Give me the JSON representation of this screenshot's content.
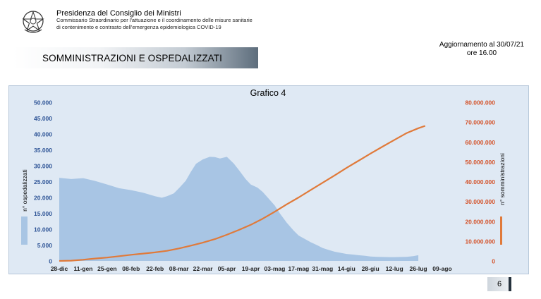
{
  "header": {
    "title": "Presidenza del Consiglio dei Ministri",
    "subtitle_line1": "Commissario Straordinario  per l'attuazione e il coordinamento delle misure sanitarie",
    "subtitle_line2": "di contenimento e contrasto dell'emergenza epidemiologica COVID-19"
  },
  "update": {
    "line1": "Aggiornamento al 30/07/21",
    "line2": "ore 16.00"
  },
  "banner": {
    "title": "SOMMINISTRAZIONI E OSPEDALIZZATI"
  },
  "page_number": "6",
  "colors": {
    "area": "#a8c5e4",
    "line": "#e07a3a",
    "left_axis_text": "#2f5597",
    "right_axis_text": "#d4532a",
    "chart_bg": "#dfe9f4"
  },
  "chart_data": {
    "type": "area",
    "title": "Grafico 4",
    "categories": [
      "28-dic",
      "11-gen",
      "25-gen",
      "08-feb",
      "22-feb",
      "08-mar",
      "22-mar",
      "05-apr",
      "19-apr",
      "03-mag",
      "17-mag",
      "31-mag",
      "14-giu",
      "28-giu",
      "12-lug",
      "26-lug",
      "09-ago"
    ],
    "x": [
      0,
      14,
      28,
      42,
      56,
      70,
      84,
      98,
      112,
      126,
      140,
      154,
      168,
      182,
      196,
      210,
      224
    ],
    "ylabel_left": "n° ospedalizzati",
    "ylabel_right": "n° somministrazioni",
    "yticks_left": [
      "0",
      "5.000",
      "10.000",
      "15.000",
      "20.000",
      "25.000",
      "30.000",
      "35.000",
      "40.000",
      "45.000",
      "50.000"
    ],
    "yticks_right": [
      "0",
      "10.000.000",
      "20.000.000",
      "30.000.000",
      "40.000.000",
      "50.000.000",
      "60.000.000",
      "70.000.000",
      "80.000.000"
    ],
    "ylim_left": [
      0,
      50000
    ],
    "ylim_right": [
      0,
      80000000
    ],
    "grid": false,
    "legend": "none",
    "series": [
      {
        "axis": "left",
        "kind": "area",
        "x": [
          0,
          7,
          14,
          21,
          28,
          35,
          42,
          49,
          56,
          60,
          63,
          67,
          70,
          74,
          77,
          80,
          84,
          88,
          91,
          94,
          98,
          102,
          105,
          109,
          112,
          116,
          119,
          123,
          126,
          129,
          133,
          137,
          140,
          144,
          147,
          151,
          154,
          158,
          161,
          165,
          168,
          172,
          175,
          179,
          182,
          186,
          189,
          193,
          196,
          200,
          203,
          207,
          210
        ],
        "values": [
          26200,
          25800,
          26100,
          25200,
          24100,
          22900,
          22300,
          21500,
          20400,
          19900,
          20400,
          21300,
          22900,
          25300,
          28100,
          30600,
          32000,
          32800,
          32700,
          32300,
          32800,
          30700,
          28700,
          25800,
          24100,
          23100,
          21700,
          19300,
          17500,
          15000,
          12100,
          9600,
          8000,
          6800,
          5900,
          4900,
          4100,
          3400,
          2900,
          2500,
          2200,
          2000,
          1800,
          1600,
          1400,
          1300,
          1250,
          1200,
          1200,
          1250,
          1300,
          1500,
          1800
        ]
      },
      {
        "axis": "right",
        "kind": "line",
        "x": [
          0,
          7,
          14,
          21,
          28,
          35,
          42,
          49,
          56,
          63,
          70,
          77,
          84,
          91,
          98,
          105,
          112,
          119,
          126,
          133,
          140,
          147,
          154,
          161,
          168,
          175,
          182,
          189,
          196,
          203,
          210,
          214
        ],
        "values": [
          0,
          150000,
          600000,
          1200000,
          1700000,
          2400000,
          3100000,
          3700000,
          4300000,
          5100000,
          6300000,
          7700000,
          9200000,
          11000000,
          13200000,
          15600000,
          18200000,
          21300000,
          24800000,
          28500000,
          32000000,
          35700000,
          39400000,
          43100000,
          46900000,
          50500000,
          54100000,
          57600000,
          61000000,
          64400000,
          66900000,
          68100000
        ]
      }
    ]
  }
}
